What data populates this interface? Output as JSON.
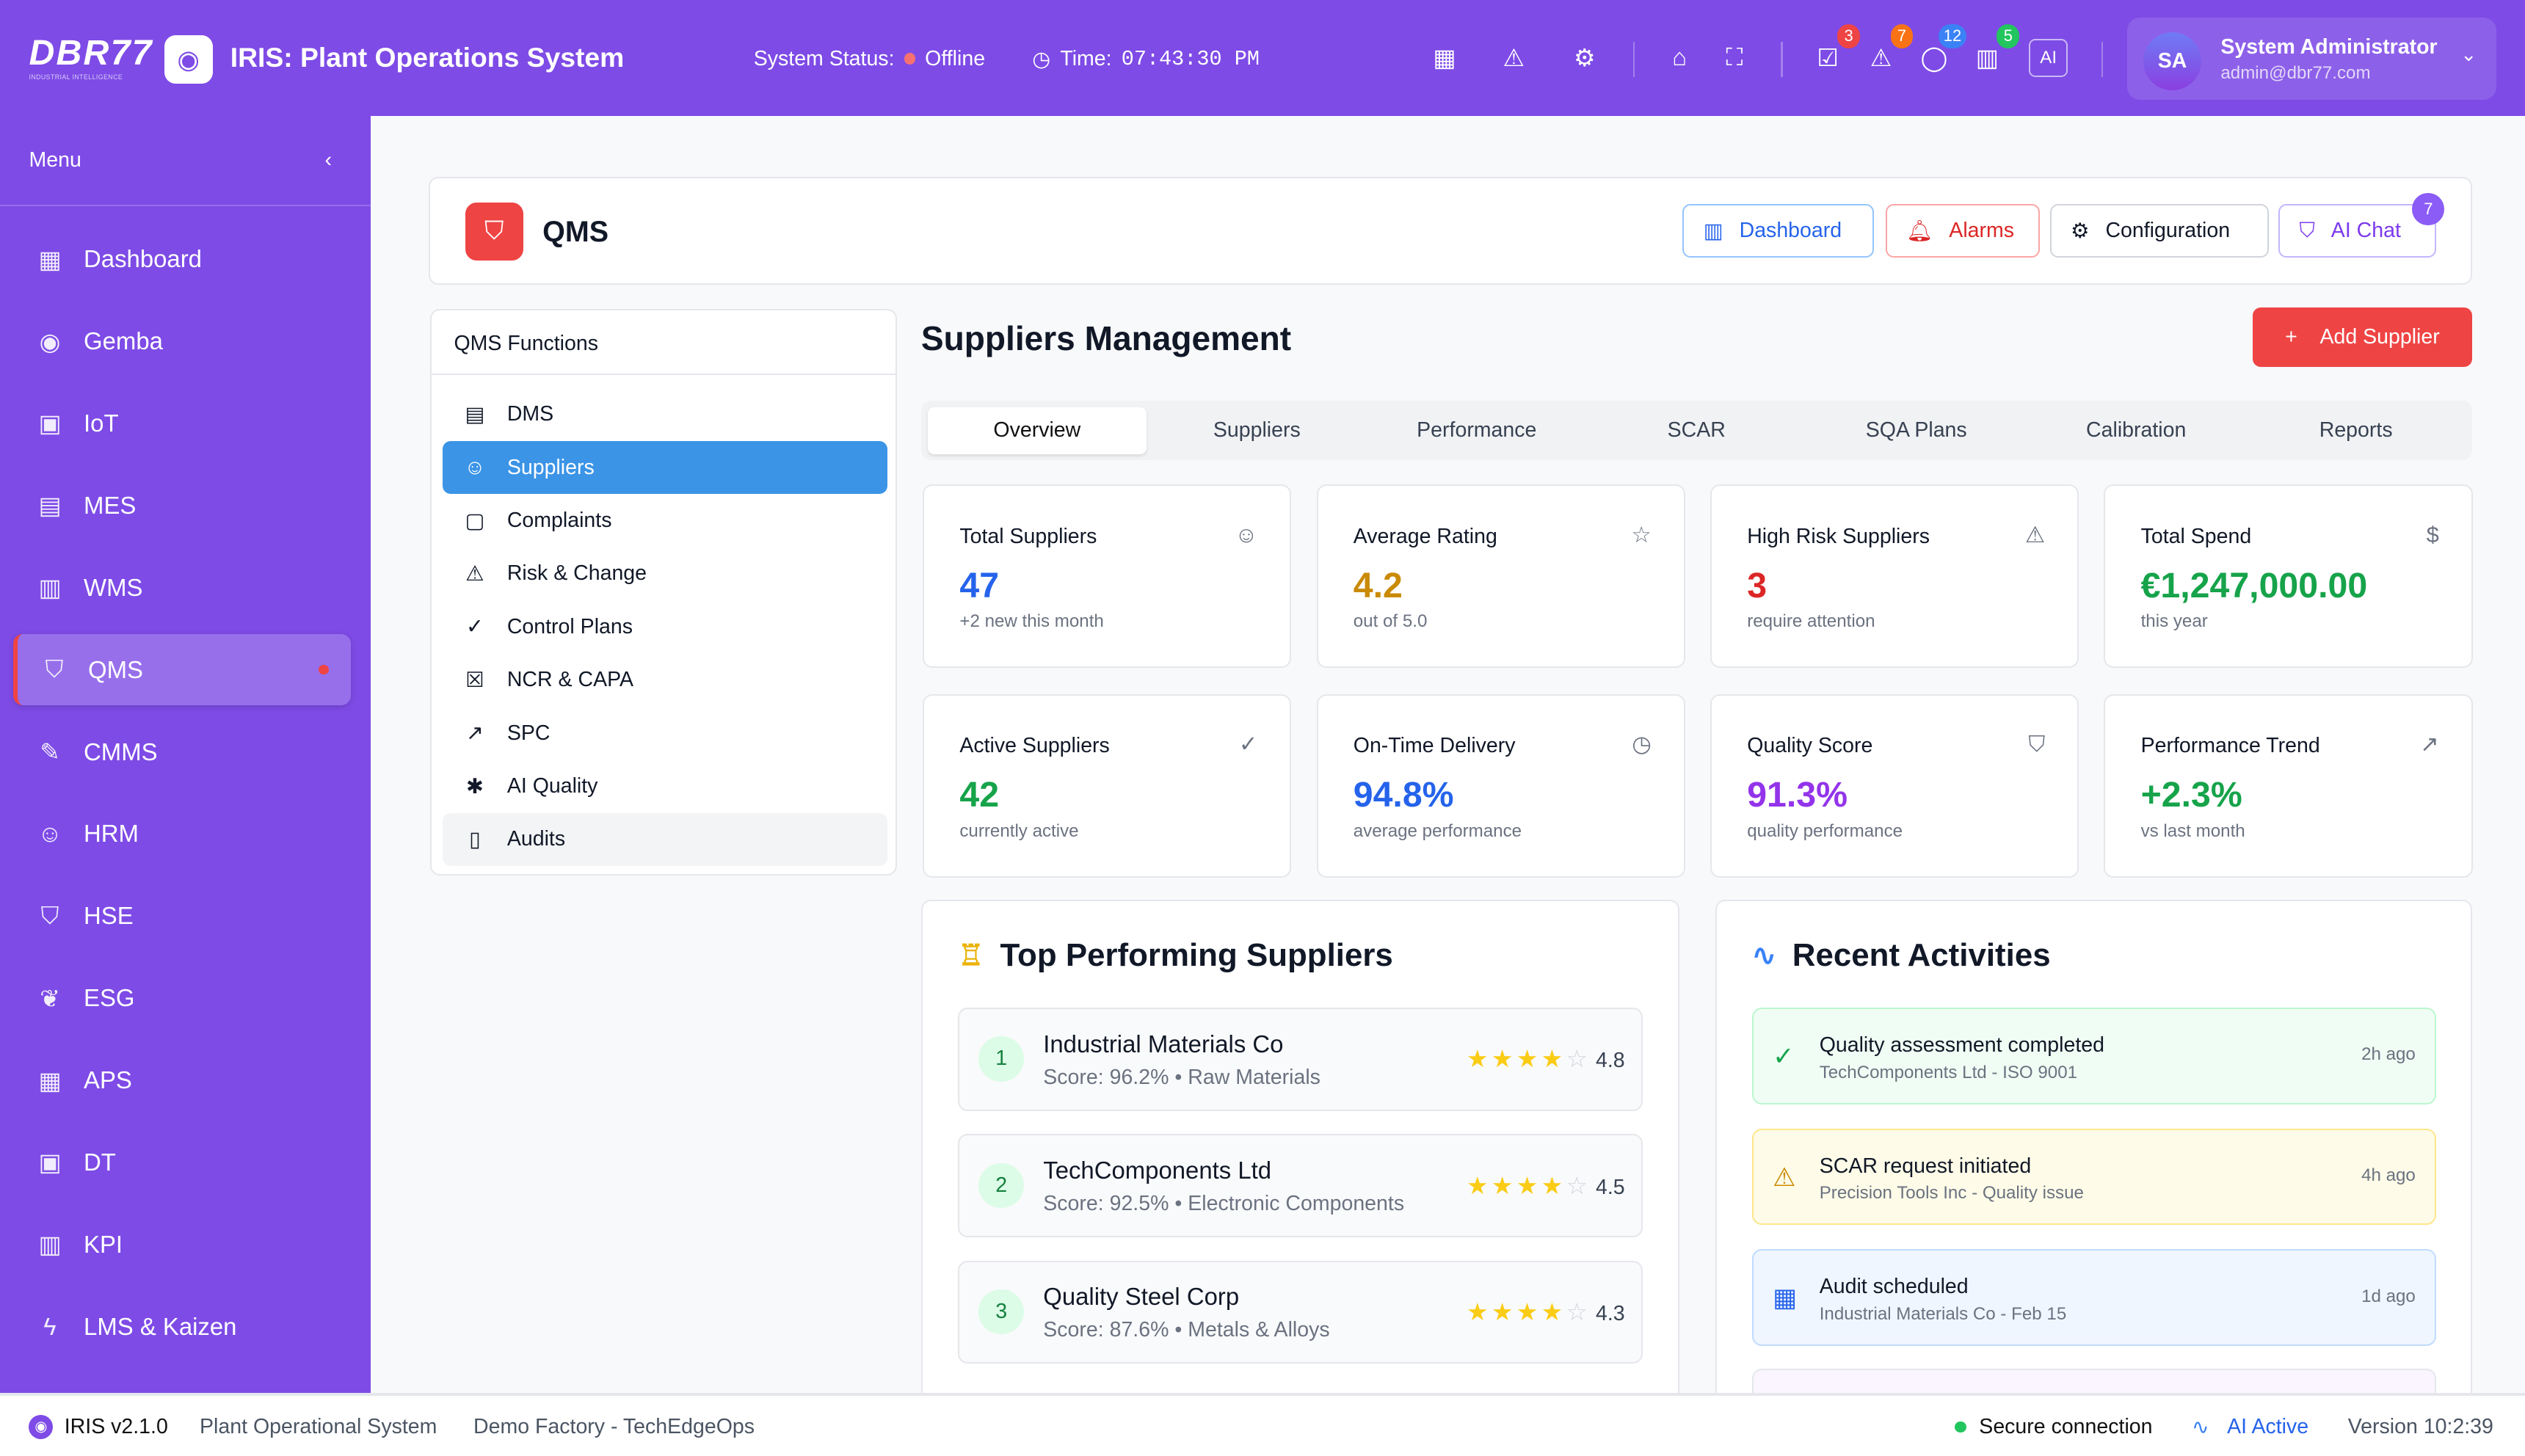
{
  "header": {
    "logo": "DBR77",
    "logo_tagline": "INDUSTRIAL INTELLIGENCE",
    "app_title": "IRIS: Plant Operations System",
    "status_label": "System Status:",
    "status_value": "Offline",
    "status_color": "#f87171",
    "time_label": "Time:",
    "time_value": "07:43:30 PM",
    "badges": [
      {
        "icon": "tasks-icon",
        "count": "3",
        "color": "#ef4444"
      },
      {
        "icon": "alert-icon",
        "count": "7",
        "color": "#f97316"
      },
      {
        "icon": "chat-icon",
        "count": "12",
        "color": "#3b82f6"
      },
      {
        "icon": "building-icon",
        "count": "5",
        "color": "#22c55e"
      }
    ],
    "ai_label": "AI",
    "user": {
      "initials": "SA",
      "name": "System Administrator",
      "email": "admin@dbr77.com"
    }
  },
  "sidebar": {
    "title": "Menu",
    "items": [
      {
        "label": "Dashboard",
        "icon": "▦"
      },
      {
        "label": "Gemba",
        "icon": "◉"
      },
      {
        "label": "IoT",
        "icon": "▣"
      },
      {
        "label": "MES",
        "icon": "▤"
      },
      {
        "label": "WMS",
        "icon": "▥"
      },
      {
        "label": "QMS",
        "icon": "⛉"
      },
      {
        "label": "CMMS",
        "icon": "✎"
      },
      {
        "label": "HRM",
        "icon": "☺"
      },
      {
        "label": "HSE",
        "icon": "⛉"
      },
      {
        "label": "ESG",
        "icon": "❦"
      },
      {
        "label": "APS",
        "icon": "▦"
      },
      {
        "label": "DT",
        "icon": "▣"
      },
      {
        "label": "KPI",
        "icon": "▥"
      },
      {
        "label": "LMS & Kaizen",
        "icon": "ϟ"
      }
    ]
  },
  "module": {
    "title": "QMS",
    "buttons": {
      "dashboard": "Dashboard",
      "alarms": "Alarms",
      "configuration": "Configuration",
      "ai_chat": "AI Chat",
      "ai_chat_badge": "7"
    }
  },
  "functions": {
    "title": "QMS Functions",
    "items": [
      {
        "label": "DMS",
        "icon": "▤"
      },
      {
        "label": "Suppliers",
        "icon": "☺"
      },
      {
        "label": "Complaints",
        "icon": "▢"
      },
      {
        "label": "Risk & Change",
        "icon": "⚠"
      },
      {
        "label": "Control Plans",
        "icon": "✓"
      },
      {
        "label": "NCR & CAPA",
        "icon": "☒"
      },
      {
        "label": "SPC",
        "icon": "↗"
      },
      {
        "label": "AI Quality",
        "icon": "✱"
      },
      {
        "label": "Audits",
        "icon": "▯"
      }
    ]
  },
  "page": {
    "title": "Suppliers Management",
    "add_button": "Add Supplier",
    "tabs": [
      "Overview",
      "Suppliers",
      "Performance",
      "SCAR",
      "SQA Plans",
      "Calibration",
      "Reports"
    ]
  },
  "stats": [
    {
      "label": "Total Suppliers",
      "value": "47",
      "sub": "+2 new this month",
      "icon": "☺",
      "color": "#2563eb"
    },
    {
      "label": "Average Rating",
      "value": "4.2",
      "sub": "out of 5.0",
      "icon": "☆",
      "color": "#ca8a04"
    },
    {
      "label": "High Risk Suppliers",
      "value": "3",
      "sub": "require attention",
      "icon": "⚠",
      "color": "#dc2626"
    },
    {
      "label": "Total Spend",
      "value": "€1,247,000.00",
      "sub": "this year",
      "icon": "$",
      "color": "#16a34a"
    },
    {
      "label": "Active Suppliers",
      "value": "42",
      "sub": "currently active",
      "icon": "✓",
      "color": "#16a34a"
    },
    {
      "label": "On-Time Delivery",
      "value": "94.8%",
      "sub": "average performance",
      "icon": "◷",
      "color": "#2563eb"
    },
    {
      "label": "Quality Score",
      "value": "91.3%",
      "sub": "quality performance",
      "icon": "⛉",
      "color": "#9333ea"
    },
    {
      "label": "Performance Trend",
      "value": "+2.3%",
      "sub": "vs last month",
      "icon": "↗",
      "color": "#16a34a"
    }
  ],
  "top_suppliers": {
    "title": "Top Performing Suppliers",
    "items": [
      {
        "rank": "1",
        "name": "Industrial Materials Co",
        "score": "Score: 96.2% • Raw Materials",
        "rating": "4.8",
        "stars": 4
      },
      {
        "rank": "2",
        "name": "TechComponents Ltd",
        "score": "Score: 92.5% • Electronic Components",
        "rating": "4.5",
        "stars": 4
      },
      {
        "rank": "3",
        "name": "Quality Steel Corp",
        "score": "Score: 87.6% • Metals & Alloys",
        "rating": "4.3",
        "stars": 4
      }
    ]
  },
  "activities": {
    "title": "Recent Activities",
    "items": [
      {
        "title": "Quality assessment completed",
        "sub": "TechComponents Ltd - ISO 9001",
        "ago": "2h ago",
        "icon": "✓",
        "bg": "#f0fdf4",
        "border": "#bbf7d0",
        "color": "#16a34a"
      },
      {
        "title": "SCAR request initiated",
        "sub": "Precision Tools Inc - Quality issue",
        "ago": "4h ago",
        "icon": "⚠",
        "bg": "#fefce8",
        "border": "#fde68a",
        "color": "#ca8a04"
      },
      {
        "title": "Audit scheduled",
        "sub": "Industrial Materials Co - Feb 15",
        "ago": "1d ago",
        "icon": "▦",
        "bg": "#eff6ff",
        "border": "#bfdbfe",
        "color": "#2563eb"
      }
    ]
  },
  "footer": {
    "version": "IRIS v2.1.0",
    "system": "Plant Operational System",
    "factory": "Demo Factory - TechEdgeOps",
    "secure": "Secure connection",
    "ai": "AI Active",
    "version_right": "Version 10:2:39"
  }
}
